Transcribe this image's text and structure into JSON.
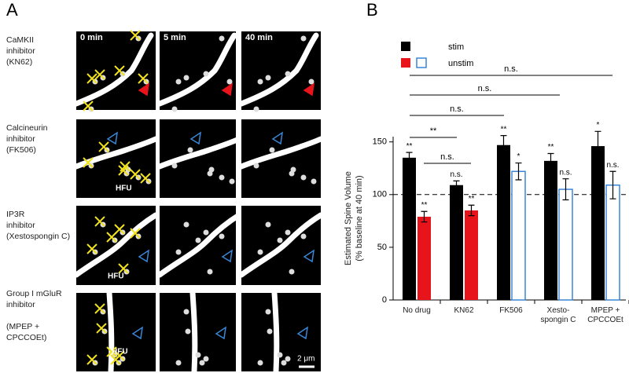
{
  "panel_a": {
    "label": "A",
    "columns": [
      "0 min",
      "5 min",
      "40 min"
    ],
    "rows": [
      "CaMKII\ninhibitor\n(KN62)",
      "Calcineurin\ninhibitor\n(FK506)",
      "IP3R\ninhibitor\n(Xestospongin C)",
      "Group I mGluR\ninhibitor\n\n(MPEP +\nCPCCOEt)"
    ],
    "stimulus_label": "HFU",
    "scale_bar": "2 μm"
  },
  "chart_data": {
    "type": "bar",
    "panel_label": "B",
    "y_label": "Estimated Spine Volume\n(% baseline at 40 min)",
    "categories": [
      "No drug",
      "KN62",
      "FK506",
      "Xesto-\nspongin C",
      "MPEP +\nCPCCOEt"
    ],
    "series": [
      {
        "name": "stim",
        "color": "#000000",
        "values": [
          135,
          109,
          147,
          132,
          146
        ],
        "errors": [
          5,
          4,
          9,
          7,
          14
        ],
        "significance": [
          "**",
          "n.s.",
          "**",
          "**",
          "*"
        ]
      },
      {
        "name": "unstim",
        "colors": [
          "#e8141c",
          "#e8141c",
          "#3a86d6",
          "#3a86d6",
          "#3a86d6"
        ],
        "filled": [
          true,
          true,
          false,
          false,
          false
        ],
        "values": [
          79,
          85,
          122,
          105,
          109
        ],
        "errors": [
          5,
          5,
          8,
          10,
          13
        ],
        "significance": [
          "**",
          "**",
          "*",
          "n.s.",
          "n.s."
        ]
      }
    ],
    "comparisons": [
      "n.s.",
      "n.s.",
      "n.s.",
      "**",
      "n.s."
    ],
    "reference_line": 100,
    "ylim": [
      0,
      155
    ],
    "yticks": [
      0,
      50,
      100,
      150
    ]
  }
}
